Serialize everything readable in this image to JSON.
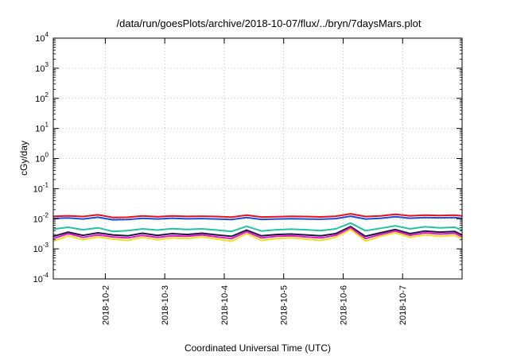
{
  "chart_data": {
    "type": "line",
    "title": "/data/run/goesPlots/archive/2018-10-07/flux/../bryn/7daysMars.plot",
    "xlabel": "Coordinated Universal Time (UTC)",
    "ylabel": "cGy/day",
    "yscale": "log",
    "ylim": [
      0.0001,
      10000
    ],
    "xlim": [
      "2018-10-01T03:00",
      "2018-10-08T00:00"
    ],
    "grid": true,
    "x_ticks": [
      "2018-10-2",
      "2018-10-3",
      "2018-10-4",
      "2018-10-5",
      "2018-10-6",
      "2018-10-7"
    ],
    "y_ticks": [
      {
        "base": "10",
        "exp": "4"
      },
      {
        "base": "10",
        "exp": "3"
      },
      {
        "base": "10",
        "exp": "2"
      },
      {
        "base": "10",
        "exp": "1"
      },
      {
        "base": "10",
        "exp": "0"
      },
      {
        "base": "10",
        "exp": "-1"
      },
      {
        "base": "10",
        "exp": "-2"
      },
      {
        "base": "10",
        "exp": "-3"
      },
      {
        "base": "10",
        "exp": "-4"
      }
    ],
    "series": [
      {
        "color": "#e8101c",
        "points": [
          [
            "2018-10-01T03:00",
            0.012
          ],
          [
            "2018-10-01T09:00",
            0.0125
          ],
          [
            "2018-10-01T15:00",
            0.0118
          ],
          [
            "2018-10-01T21:00",
            0.0135
          ],
          [
            "2018-10-02T03:00",
            0.011
          ],
          [
            "2018-10-02T09:00",
            0.0112
          ],
          [
            "2018-10-02T15:00",
            0.0123
          ],
          [
            "2018-10-02T21:00",
            0.0117
          ],
          [
            "2018-10-03T03:00",
            0.0124
          ],
          [
            "2018-10-03T09:00",
            0.0119
          ],
          [
            "2018-10-03T15:00",
            0.0121
          ],
          [
            "2018-10-03T21:00",
            0.0118
          ],
          [
            "2018-10-04T03:00",
            0.0113
          ],
          [
            "2018-10-04T09:00",
            0.0132
          ],
          [
            "2018-10-04T15:00",
            0.0114
          ],
          [
            "2018-10-04T21:00",
            0.0117
          ],
          [
            "2018-10-05T03:00",
            0.012
          ],
          [
            "2018-10-05T09:00",
            0.0118
          ],
          [
            "2018-10-05T15:00",
            0.0115
          ],
          [
            "2018-10-05T21:00",
            0.0121
          ],
          [
            "2018-10-06T03:00",
            0.0145
          ],
          [
            "2018-10-06T09:00",
            0.0118
          ],
          [
            "2018-10-06T15:00",
            0.0124
          ],
          [
            "2018-10-06T21:00",
            0.014
          ],
          [
            "2018-10-07T03:00",
            0.0125
          ],
          [
            "2018-10-07T09:00",
            0.0132
          ],
          [
            "2018-10-07T15:00",
            0.0128
          ],
          [
            "2018-10-07T21:00",
            0.0131
          ],
          [
            "2018-10-08T00:00",
            0.0124
          ]
        ]
      },
      {
        "color": "#1a4fd8",
        "points": [
          [
            "2018-10-01T03:00",
            0.0102
          ],
          [
            "2018-10-01T09:00",
            0.0106
          ],
          [
            "2018-10-01T15:00",
            0.0098
          ],
          [
            "2018-10-01T21:00",
            0.0112
          ],
          [
            "2018-10-02T03:00",
            0.0092
          ],
          [
            "2018-10-02T09:00",
            0.0094
          ],
          [
            "2018-10-02T15:00",
            0.0103
          ],
          [
            "2018-10-02T21:00",
            0.0098
          ],
          [
            "2018-10-03T03:00",
            0.0104
          ],
          [
            "2018-10-03T09:00",
            0.0099
          ],
          [
            "2018-10-03T15:00",
            0.0101
          ],
          [
            "2018-10-03T21:00",
            0.0098
          ],
          [
            "2018-10-04T03:00",
            0.0094
          ],
          [
            "2018-10-04T09:00",
            0.011
          ],
          [
            "2018-10-04T15:00",
            0.0095
          ],
          [
            "2018-10-04T21:00",
            0.0098
          ],
          [
            "2018-10-05T03:00",
            0.01
          ],
          [
            "2018-10-05T09:00",
            0.0098
          ],
          [
            "2018-10-05T15:00",
            0.0096
          ],
          [
            "2018-10-05T21:00",
            0.0101
          ],
          [
            "2018-10-06T03:00",
            0.0121
          ],
          [
            "2018-10-06T09:00",
            0.0098
          ],
          [
            "2018-10-06T15:00",
            0.0103
          ],
          [
            "2018-10-06T21:00",
            0.0117
          ],
          [
            "2018-10-07T03:00",
            0.0104
          ],
          [
            "2018-10-07T09:00",
            0.011
          ],
          [
            "2018-10-07T15:00",
            0.0107
          ],
          [
            "2018-10-07T21:00",
            0.0109
          ],
          [
            "2018-10-08T00:00",
            0.0102
          ]
        ]
      },
      {
        "color": "#22c3a0",
        "points": [
          [
            "2018-10-01T03:00",
            0.0045
          ],
          [
            "2018-10-01T09:00",
            0.0052
          ],
          [
            "2018-10-01T15:00",
            0.0043
          ],
          [
            "2018-10-01T21:00",
            0.005
          ],
          [
            "2018-10-02T03:00",
            0.0038
          ],
          [
            "2018-10-02T09:00",
            0.004
          ],
          [
            "2018-10-02T15:00",
            0.0046
          ],
          [
            "2018-10-02T21:00",
            0.0042
          ],
          [
            "2018-10-03T03:00",
            0.0047
          ],
          [
            "2018-10-03T09:00",
            0.0044
          ],
          [
            "2018-10-03T15:00",
            0.0046
          ],
          [
            "2018-10-03T21:00",
            0.0042
          ],
          [
            "2018-10-04T03:00",
            0.0038
          ],
          [
            "2018-10-04T09:00",
            0.0056
          ],
          [
            "2018-10-04T15:00",
            0.0039
          ],
          [
            "2018-10-04T21:00",
            0.0043
          ],
          [
            "2018-10-05T03:00",
            0.0045
          ],
          [
            "2018-10-05T09:00",
            0.0043
          ],
          [
            "2018-10-05T15:00",
            0.004
          ],
          [
            "2018-10-05T21:00",
            0.0046
          ],
          [
            "2018-10-06T03:00",
            0.0072
          ],
          [
            "2018-10-06T09:00",
            0.004
          ],
          [
            "2018-10-06T15:00",
            0.0048
          ],
          [
            "2018-10-06T21:00",
            0.0058
          ],
          [
            "2018-10-07T03:00",
            0.0046
          ],
          [
            "2018-10-07T09:00",
            0.0054
          ],
          [
            "2018-10-07T15:00",
            0.005
          ],
          [
            "2018-10-07T21:00",
            0.0052
          ],
          [
            "2018-10-08T00:00",
            0.0042
          ]
        ]
      },
      {
        "color": "#1a1a40",
        "points": [
          [
            "2018-10-01T03:00",
            0.0026
          ],
          [
            "2018-10-01T09:00",
            0.0036
          ],
          [
            "2018-10-01T15:00",
            0.0028
          ],
          [
            "2018-10-01T21:00",
            0.0034
          ],
          [
            "2018-10-02T03:00",
            0.0029
          ],
          [
            "2018-10-02T09:00",
            0.0027
          ],
          [
            "2018-10-02T15:00",
            0.0033
          ],
          [
            "2018-10-02T21:00",
            0.0028
          ],
          [
            "2018-10-03T03:00",
            0.0032
          ],
          [
            "2018-10-03T09:00",
            0.003
          ],
          [
            "2018-10-03T15:00",
            0.0033
          ],
          [
            "2018-10-03T21:00",
            0.0029
          ],
          [
            "2018-10-04T03:00",
            0.0026
          ],
          [
            "2018-10-04T09:00",
            0.0042
          ],
          [
            "2018-10-04T15:00",
            0.0027
          ],
          [
            "2018-10-04T21:00",
            0.003
          ],
          [
            "2018-10-05T03:00",
            0.0031
          ],
          [
            "2018-10-05T09:00",
            0.0029
          ],
          [
            "2018-10-05T15:00",
            0.0027
          ],
          [
            "2018-10-05T21:00",
            0.0032
          ],
          [
            "2018-10-06T03:00",
            0.0055
          ],
          [
            "2018-10-06T09:00",
            0.0026
          ],
          [
            "2018-10-06T15:00",
            0.0034
          ],
          [
            "2018-10-06T21:00",
            0.0044
          ],
          [
            "2018-10-07T03:00",
            0.0032
          ],
          [
            "2018-10-07T09:00",
            0.0039
          ],
          [
            "2018-10-07T15:00",
            0.0036
          ],
          [
            "2018-10-07T21:00",
            0.0038
          ],
          [
            "2018-10-08T00:00",
            0.0029
          ]
        ]
      },
      {
        "color": "#e818c8",
        "points": [
          [
            "2018-10-01T03:00",
            0.0022
          ],
          [
            "2018-10-01T09:00",
            0.0032
          ],
          [
            "2018-10-01T15:00",
            0.0024
          ],
          [
            "2018-10-01T21:00",
            0.0029
          ],
          [
            "2018-10-02T03:00",
            0.0025
          ],
          [
            "2018-10-02T09:00",
            0.0023
          ],
          [
            "2018-10-02T15:00",
            0.0028
          ],
          [
            "2018-10-02T21:00",
            0.0024
          ],
          [
            "2018-10-03T03:00",
            0.0027
          ],
          [
            "2018-10-03T09:00",
            0.0026
          ],
          [
            "2018-10-03T15:00",
            0.0029
          ],
          [
            "2018-10-03T21:00",
            0.0025
          ],
          [
            "2018-10-04T03:00",
            0.0022
          ],
          [
            "2018-10-04T09:00",
            0.0037
          ],
          [
            "2018-10-04T15:00",
            0.0023
          ],
          [
            "2018-10-04T21:00",
            0.0026
          ],
          [
            "2018-10-05T03:00",
            0.0027
          ],
          [
            "2018-10-05T09:00",
            0.0025
          ],
          [
            "2018-10-05T15:00",
            0.0023
          ],
          [
            "2018-10-05T21:00",
            0.0028
          ],
          [
            "2018-10-06T03:00",
            0.005
          ],
          [
            "2018-10-06T09:00",
            0.0022
          ],
          [
            "2018-10-06T15:00",
            0.003
          ],
          [
            "2018-10-06T21:00",
            0.0039
          ],
          [
            "2018-10-07T03:00",
            0.0028
          ],
          [
            "2018-10-07T09:00",
            0.0034
          ],
          [
            "2018-10-07T15:00",
            0.0031
          ],
          [
            "2018-10-07T21:00",
            0.0033
          ],
          [
            "2018-10-08T00:00",
            0.0025
          ]
        ]
      },
      {
        "color": "#f0e020",
        "points": [
          [
            "2018-10-01T03:00",
            0.0018
          ],
          [
            "2018-10-01T09:00",
            0.0027
          ],
          [
            "2018-10-01T15:00",
            0.002
          ],
          [
            "2018-10-01T21:00",
            0.0025
          ],
          [
            "2018-10-02T03:00",
            0.0021
          ],
          [
            "2018-10-02T09:00",
            0.0019
          ],
          [
            "2018-10-02T15:00",
            0.0024
          ],
          [
            "2018-10-02T21:00",
            0.002
          ],
          [
            "2018-10-03T03:00",
            0.0023
          ],
          [
            "2018-10-03T09:00",
            0.0022
          ],
          [
            "2018-10-03T15:00",
            0.0025
          ],
          [
            "2018-10-03T21:00",
            0.0021
          ],
          [
            "2018-10-04T03:00",
            0.0018
          ],
          [
            "2018-10-04T09:00",
            0.0032
          ],
          [
            "2018-10-04T15:00",
            0.0019
          ],
          [
            "2018-10-04T21:00",
            0.0022
          ],
          [
            "2018-10-05T03:00",
            0.0023
          ],
          [
            "2018-10-05T09:00",
            0.0021
          ],
          [
            "2018-10-05T15:00",
            0.0019
          ],
          [
            "2018-10-05T21:00",
            0.0024
          ],
          [
            "2018-10-06T03:00",
            0.0044
          ],
          [
            "2018-10-06T09:00",
            0.0018
          ],
          [
            "2018-10-06T15:00",
            0.0026
          ],
          [
            "2018-10-06T21:00",
            0.0034
          ],
          [
            "2018-10-07T03:00",
            0.0024
          ],
          [
            "2018-10-07T09:00",
            0.0029
          ],
          [
            "2018-10-07T15:00",
            0.0026
          ],
          [
            "2018-10-07T21:00",
            0.0028
          ],
          [
            "2018-10-08T00:00",
            0.0021
          ]
        ]
      }
    ]
  }
}
